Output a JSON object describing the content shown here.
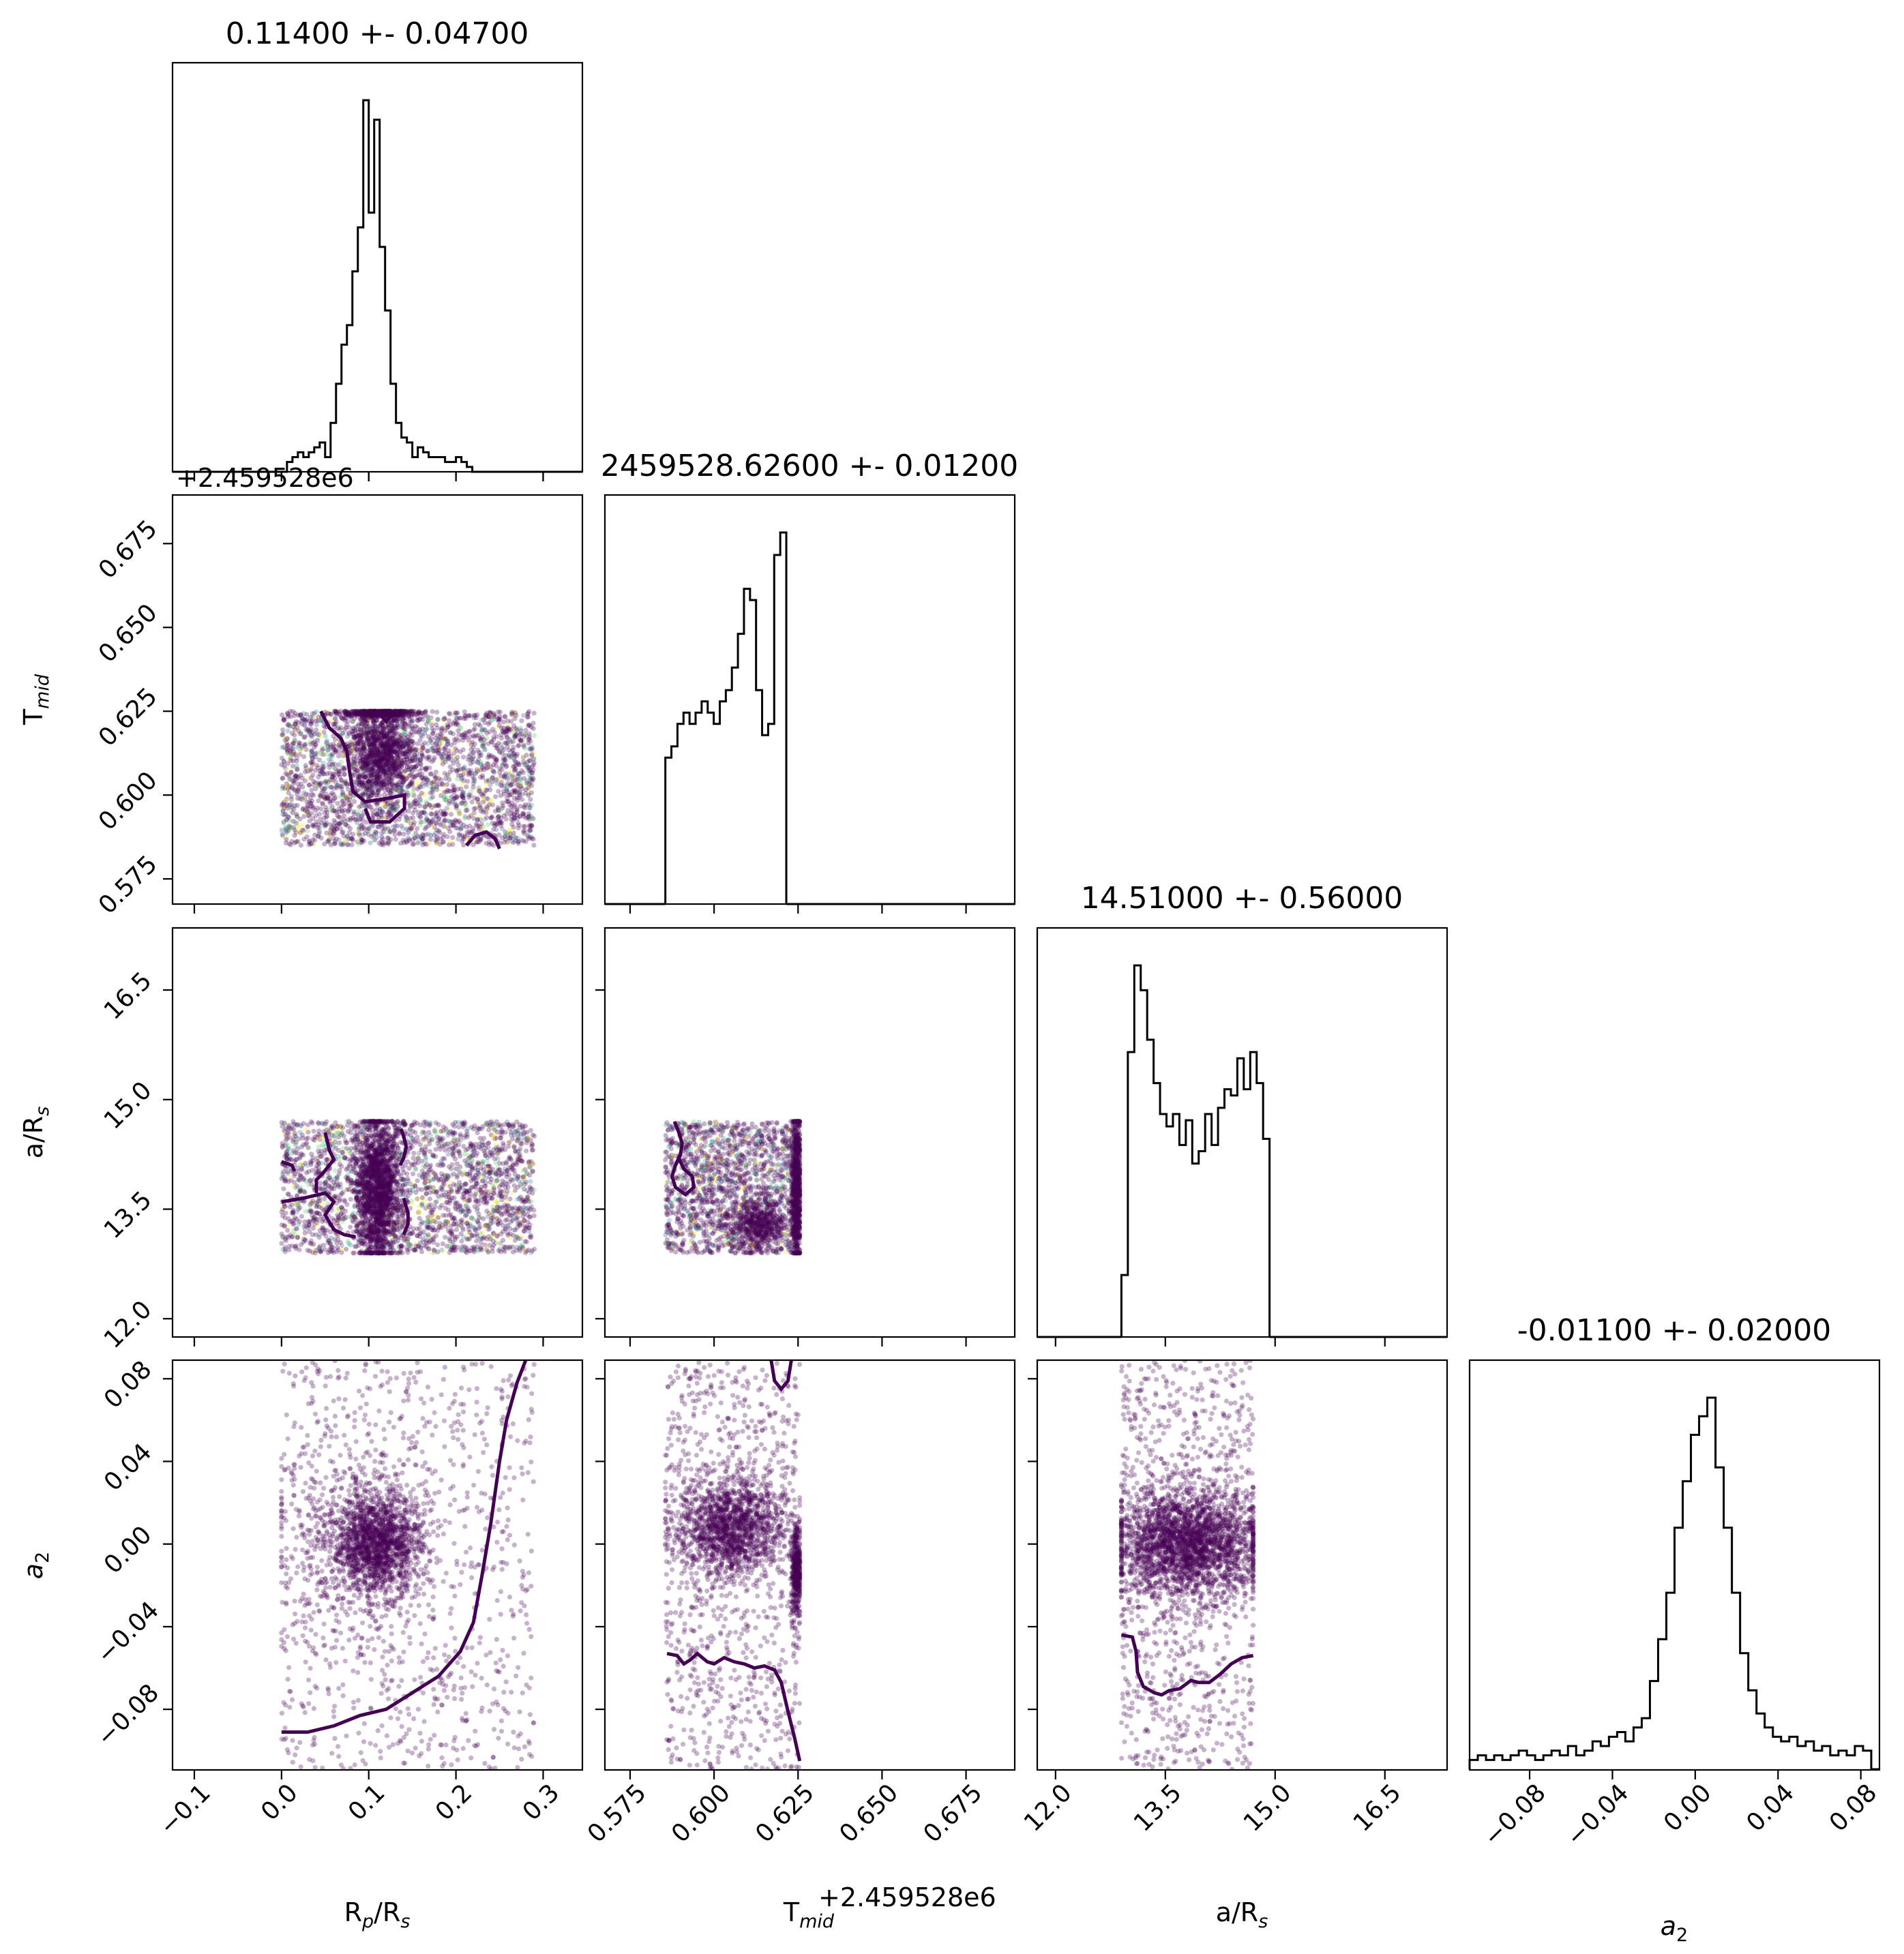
{
  "chart_data": {
    "type": "corner",
    "axis_ranges": {
      "rp_rs": [
        -0.125,
        0.345
      ],
      "t_mid": [
        0.5675,
        0.6895
      ],
      "a_rs": [
        11.75,
        17.35
      ],
      "a2": [
        -0.109,
        0.089
      ]
    },
    "tick_values": {
      "rp_rs": [
        -0.1,
        0.0,
        0.1,
        0.2,
        0.3
      ],
      "t_mid": [
        0.575,
        0.6,
        0.625,
        0.65,
        0.675
      ],
      "a_rs": [
        12.0,
        13.5,
        15.0,
        16.5
      ],
      "a2": [
        -0.08,
        -0.04,
        0.0,
        0.04,
        0.08
      ]
    },
    "tick_labels": {
      "rp_rs": [
        "−0.1",
        "0.0",
        "0.1",
        "0.2",
        "0.3"
      ],
      "t_mid": [
        "0.575",
        "0.600",
        "0.625",
        "0.650",
        "0.675"
      ],
      "a_rs": [
        "12.0",
        "13.5",
        "15.0",
        "16.5"
      ],
      "a2": [
        "−0.08",
        "−0.04",
        "0.00",
        "0.04",
        "0.08"
      ]
    },
    "offset_labels": {
      "t_mid_x": "+2.459528e6",
      "t_mid_y": "+2.459528e6"
    },
    "titles": {
      "rp_rs": "0.11400 +- 0.04700",
      "t_mid": "2459528.62600 +- 0.01200",
      "a_rs": "14.51000 +- 0.56000",
      "a2": "-0.01100 +- 0.02000"
    },
    "axis_labels": {
      "rp_rs": {
        "base": "R",
        "sub": "p",
        "mid": "/R",
        "sub2": "s"
      },
      "t_mid": {
        "base": "T",
        "sub": "mid",
        "mid": "",
        "sub2": ""
      },
      "a_rs": {
        "base": "a/R",
        "sub": "s",
        "mid": "",
        "sub2": ""
      },
      "a2": {
        "base": "a",
        "sub": "2",
        "mid": "",
        "sub2": ""
      }
    },
    "histograms": {
      "rp_rs": {
        "edges_start": 0.0,
        "bin_width": 0.00625,
        "counts": [
          0,
          2,
          3,
          4,
          3,
          4,
          5,
          6,
          3,
          10,
          18,
          26,
          30,
          41,
          50,
          76,
          53,
          72,
          46,
          33,
          18,
          10,
          7,
          6,
          3,
          5,
          4,
          3,
          3,
          3,
          2,
          2,
          3,
          2,
          1,
          0
        ]
      },
      "t_mid": {
        "edges_start": 0.5855,
        "bin_width": 0.0018,
        "counts": [
          13,
          14,
          16,
          17,
          16,
          17,
          18,
          17,
          16,
          18,
          19,
          21,
          24,
          28,
          27,
          19,
          15,
          16,
          31,
          33
        ]
      },
      "a_rs": {
        "edges_start": 12.9,
        "bin_width": 0.088,
        "counts": [
          10,
          46,
          60,
          56,
          48,
          41,
          36,
          34,
          36,
          31,
          35,
          28,
          30,
          36,
          31,
          37,
          40,
          39,
          45,
          40,
          46,
          41,
          32
        ]
      },
      "a2": {
        "edges_start": -0.109,
        "bin_width": 0.00396,
        "counts": [
          2,
          3,
          2,
          3,
          2,
          3,
          4,
          3,
          2,
          3,
          4,
          3,
          5,
          3,
          4,
          6,
          5,
          7,
          8,
          6,
          9,
          11,
          19,
          28,
          38,
          52,
          62,
          72,
          76,
          80,
          65,
          52,
          38,
          25,
          17,
          12,
          9,
          7,
          6,
          7,
          5,
          6,
          4,
          5,
          3,
          4,
          3,
          5,
          4
        ]
      }
    },
    "scatter_clouds": {
      "rp_rs__t_mid": {
        "x": [
          0.0,
          0.29
        ],
        "y": [
          0.585,
          0.625
        ]
      },
      "rp_rs__a_rs": {
        "x": [
          0.0,
          0.29
        ],
        "y": [
          12.9,
          14.7
        ]
      },
      "rp_rs__a2": {
        "x": [
          0.0,
          0.29
        ],
        "y": [
          -0.109,
          0.089
        ],
        "core_x": 0.11,
        "core_y": 0.0
      },
      "t_mid__a_rs": {
        "x": [
          0.5855,
          0.6255
        ],
        "y": [
          12.9,
          14.7
        ]
      },
      "t_mid__a2": {
        "x": [
          0.5855,
          0.6255
        ],
        "y": [
          -0.109,
          0.089
        ]
      },
      "a_rs__a2": {
        "x": [
          12.9,
          14.7
        ],
        "y": [
          -0.109,
          0.089
        ]
      }
    },
    "contours": {
      "rp_rs__t_mid": [
        [
          [
            0.045,
            0.625
          ],
          [
            0.055,
            0.62
          ],
          [
            0.068,
            0.617
          ],
          [
            0.075,
            0.613
          ],
          [
            0.078,
            0.607
          ],
          [
            0.082,
            0.601
          ],
          [
            0.096,
            0.598
          ],
          [
            0.121,
            0.599
          ],
          [
            0.141,
            0.6
          ],
          [
            0.141,
            0.596
          ],
          [
            0.124,
            0.592
          ],
          [
            0.102,
            0.592
          ],
          [
            0.096,
            0.596
          ]
        ],
        [
          [
            0.11,
            0.625
          ],
          [
            0.12,
            0.622
          ],
          [
            0.13,
            0.625
          ]
        ],
        [
          [
            0.212,
            0.585
          ],
          [
            0.222,
            0.588
          ],
          [
            0.235,
            0.589
          ],
          [
            0.245,
            0.587
          ],
          [
            0.25,
            0.584
          ]
        ]
      ],
      "rp_rs__a_rs": [
        [
          [
            0.0,
            14.15
          ],
          [
            0.012,
            14.1
          ],
          [
            0.015,
            14.02
          ]
        ],
        [
          [
            0.0,
            13.6
          ],
          [
            0.025,
            13.65
          ],
          [
            0.05,
            13.72
          ],
          [
            0.06,
            13.6
          ],
          [
            0.05,
            13.42
          ],
          [
            0.06,
            13.22
          ],
          [
            0.072,
            13.15
          ],
          [
            0.085,
            13.12
          ]
        ],
        [
          [
            0.05,
            14.55
          ],
          [
            0.055,
            14.3
          ],
          [
            0.06,
            14.18
          ],
          [
            0.048,
            14.0
          ],
          [
            0.04,
            13.9
          ],
          [
            0.04,
            13.72
          ]
        ],
        [
          [
            0.137,
            14.6
          ],
          [
            0.14,
            14.5
          ],
          [
            0.143,
            14.35
          ],
          [
            0.14,
            14.2
          ],
          [
            0.136,
            14.1
          ]
        ],
        [
          [
            0.14,
            13.65
          ],
          [
            0.145,
            13.45
          ],
          [
            0.145,
            13.3
          ],
          [
            0.14,
            13.15
          ]
        ]
      ],
      "rp_rs__a2": [
        [
          [
            0.0,
            -0.091
          ],
          [
            0.03,
            -0.091
          ],
          [
            0.06,
            -0.088
          ],
          [
            0.09,
            -0.083
          ],
          [
            0.12,
            -0.08
          ],
          [
            0.15,
            -0.072
          ],
          [
            0.18,
            -0.064
          ],
          [
            0.205,
            -0.052
          ],
          [
            0.22,
            -0.038
          ],
          [
            0.23,
            -0.015
          ],
          [
            0.24,
            0.01
          ],
          [
            0.25,
            0.04
          ],
          [
            0.258,
            0.06
          ],
          [
            0.27,
            0.078
          ],
          [
            0.28,
            0.089
          ]
        ]
      ],
      "t_mid__a_rs": [
        [
          [
            0.5882,
            14.7
          ],
          [
            0.5895,
            14.55
          ],
          [
            0.5905,
            14.4
          ],
          [
            0.59,
            14.25
          ],
          [
            0.5885,
            14.1
          ],
          [
            0.5875,
            13.95
          ],
          [
            0.5885,
            13.8
          ],
          [
            0.5915,
            13.7
          ],
          [
            0.594,
            13.8
          ],
          [
            0.5935,
            13.95
          ],
          [
            0.591,
            14.05
          ],
          [
            0.5895,
            14.2
          ]
        ]
      ],
      "t_mid__a2": [
        [
          [
            0.586,
            -0.053
          ],
          [
            0.589,
            -0.054
          ],
          [
            0.591,
            -0.058
          ],
          [
            0.593,
            -0.056
          ],
          [
            0.595,
            -0.053
          ],
          [
            0.598,
            -0.057
          ],
          [
            0.6,
            -0.058
          ],
          [
            0.603,
            -0.055
          ],
          [
            0.606,
            -0.057
          ],
          [
            0.609,
            -0.058
          ],
          [
            0.612,
            -0.06
          ],
          [
            0.615,
            -0.059
          ],
          [
            0.618,
            -0.061
          ],
          [
            0.62,
            -0.067
          ],
          [
            0.622,
            -0.081
          ],
          [
            0.624,
            -0.094
          ],
          [
            0.6255,
            -0.105
          ]
        ],
        [
          [
            0.617,
            0.089
          ],
          [
            0.618,
            0.079
          ],
          [
            0.62,
            0.075
          ],
          [
            0.622,
            0.079
          ],
          [
            0.623,
            0.089
          ]
        ]
      ],
      "a_rs__a2": [
        [
          [
            12.9,
            -0.044
          ],
          [
            13.05,
            -0.045
          ],
          [
            13.1,
            -0.052
          ],
          [
            13.12,
            -0.062
          ],
          [
            13.2,
            -0.069
          ],
          [
            13.35,
            -0.072
          ],
          [
            13.45,
            -0.073
          ],
          [
            13.55,
            -0.071
          ],
          [
            13.7,
            -0.07
          ],
          [
            13.85,
            -0.066
          ],
          [
            13.95,
            -0.067
          ],
          [
            14.1,
            -0.067
          ],
          [
            14.25,
            -0.063
          ],
          [
            14.4,
            -0.058
          ],
          [
            14.55,
            -0.055
          ],
          [
            14.7,
            -0.054
          ]
        ]
      ]
    },
    "colors": {
      "scatter": "#440154",
      "contour": "#440154",
      "speckle": [
        "#21918c",
        "#fde725",
        "#5ec962",
        "#3b528b"
      ]
    }
  }
}
